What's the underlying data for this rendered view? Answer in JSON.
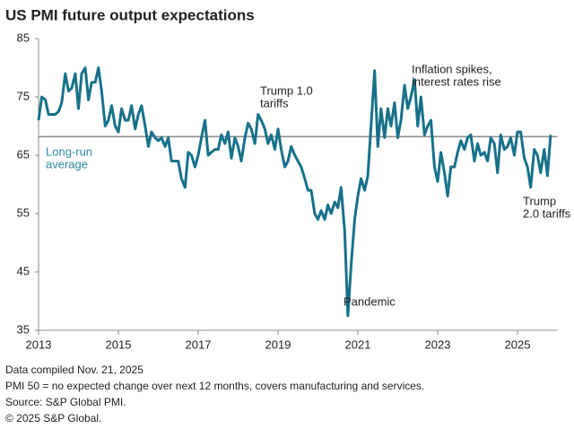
{
  "chart_data": {
    "type": "line",
    "title": "US PMI future output expectations",
    "color": "#17718a",
    "xlim": [
      2013,
      2026
    ],
    "xticks": [
      2013,
      2015,
      2017,
      2019,
      2021,
      2023,
      2025
    ],
    "ylim": [
      35,
      85
    ],
    "yticks": [
      35,
      45,
      55,
      65,
      75,
      85
    ],
    "x": [
      2013,
      2013.08,
      2013.17,
      2013.25,
      2013.33,
      2013.42,
      2013.5,
      2013.58,
      2013.67,
      2013.75,
      2013.83,
      2013.92,
      2014,
      2014.08,
      2014.17,
      2014.25,
      2014.33,
      2014.42,
      2014.5,
      2014.58,
      2014.67,
      2014.75,
      2014.83,
      2014.92,
      2015,
      2015.08,
      2015.17,
      2015.25,
      2015.33,
      2015.42,
      2015.5,
      2015.58,
      2015.67,
      2015.75,
      2015.83,
      2015.92,
      2016,
      2016.08,
      2016.17,
      2016.25,
      2016.33,
      2016.42,
      2016.5,
      2016.58,
      2016.67,
      2016.75,
      2016.83,
      2016.92,
      2017,
      2017.08,
      2017.17,
      2017.25,
      2017.33,
      2017.42,
      2017.5,
      2017.58,
      2017.67,
      2017.75,
      2017.83,
      2017.92,
      2018,
      2018.08,
      2018.17,
      2018.25,
      2018.33,
      2018.42,
      2018.5,
      2018.58,
      2018.67,
      2018.75,
      2018.83,
      2018.92,
      2019,
      2019.08,
      2019.17,
      2019.25,
      2019.33,
      2019.42,
      2019.5,
      2019.58,
      2019.67,
      2019.75,
      2019.83,
      2019.92,
      2020,
      2020.08,
      2020.17,
      2020.25,
      2020.33,
      2020.42,
      2020.5,
      2020.58,
      2020.67,
      2020.75,
      2020.83,
      2020.92,
      2021,
      2021.08,
      2021.17,
      2021.25,
      2021.33,
      2021.42,
      2021.5,
      2021.58,
      2021.67,
      2021.75,
      2021.83,
      2021.92,
      2022,
      2022.08,
      2022.17,
      2022.25,
      2022.33,
      2022.42,
      2022.5,
      2022.58,
      2022.67,
      2022.75,
      2022.83,
      2022.92,
      2023,
      2023.08,
      2023.17,
      2023.25,
      2023.33,
      2023.42,
      2023.5,
      2023.58,
      2023.67,
      2023.75,
      2023.83,
      2023.92,
      2024,
      2024.08,
      2024.17,
      2024.25,
      2024.33,
      2024.42,
      2024.5,
      2024.58,
      2024.67,
      2024.75,
      2024.83,
      2024.92,
      2025,
      2025.08,
      2025.17,
      2025.25,
      2025.33,
      2025.42,
      2025.5,
      2025.58,
      2025.67,
      2025.75,
      2025.83
    ],
    "values": [
      71,
      75,
      74.5,
      72,
      72,
      72,
      72.5,
      74,
      79,
      76,
      76.5,
      79,
      73,
      79,
      80,
      74.5,
      77.5,
      77.5,
      80,
      76,
      70,
      71,
      73.5,
      70,
      69,
      73,
      71,
      71,
      73.5,
      69.5,
      72,
      73.5,
      70,
      66.5,
      69,
      68,
      67.5,
      68,
      66.5,
      68,
      64,
      64,
      64,
      61,
      59.5,
      65.5,
      65,
      63,
      65,
      68,
      71,
      65,
      65.5,
      66,
      66,
      68.5,
      67,
      69,
      64.5,
      68,
      66.5,
      64,
      68,
      70.5,
      69.5,
      67,
      72,
      71,
      69.5,
      67,
      68.5,
      66,
      69.5,
      66,
      63,
      64,
      66.5,
      65,
      64,
      63,
      61,
      59,
      59,
      55,
      54,
      55.5,
      54,
      56.5,
      55,
      57,
      56,
      59.5,
      52,
      37.5,
      46,
      54,
      58,
      61,
      59,
      61.5,
      70,
      79.5,
      66.5,
      73,
      68,
      73,
      70,
      74,
      68,
      71,
      77,
      73,
      75,
      78,
      70,
      75,
      68.5,
      70,
      71,
      63,
      60.5,
      65.5,
      62,
      58,
      63,
      63,
      65.5,
      67.5,
      66,
      68,
      68.5,
      64,
      67,
      65,
      65.5,
      64,
      68,
      67,
      62,
      68.5,
      66,
      66.5,
      68,
      65,
      69,
      69,
      64.5,
      63,
      59.5,
      66,
      65,
      62,
      66,
      61.5,
      68.5
    ],
    "reference_line": {
      "value": 68.2,
      "color": "#7f7f7f",
      "label": [
        "Long-run",
        "average"
      ],
      "label_color": "#2a8aa0"
    },
    "annotations": [
      {
        "text": [
          "Trump 1.0",
          "tariffs"
        ]
      },
      {
        "text": [
          "Inflation spikes,",
          "interest rates rise"
        ]
      },
      {
        "text": [
          "Pandemic"
        ]
      },
      {
        "text": [
          "Trump",
          "2.0 tariffs"
        ]
      }
    ],
    "footnotes": [
      "Data compiled Nov. 21, 2025",
      "PMI 50 =  no expected change over next 12 months, covers manufacturing and services.",
      "Source: S&P Global PMI.",
      "© 2025 S&P Global."
    ]
  }
}
